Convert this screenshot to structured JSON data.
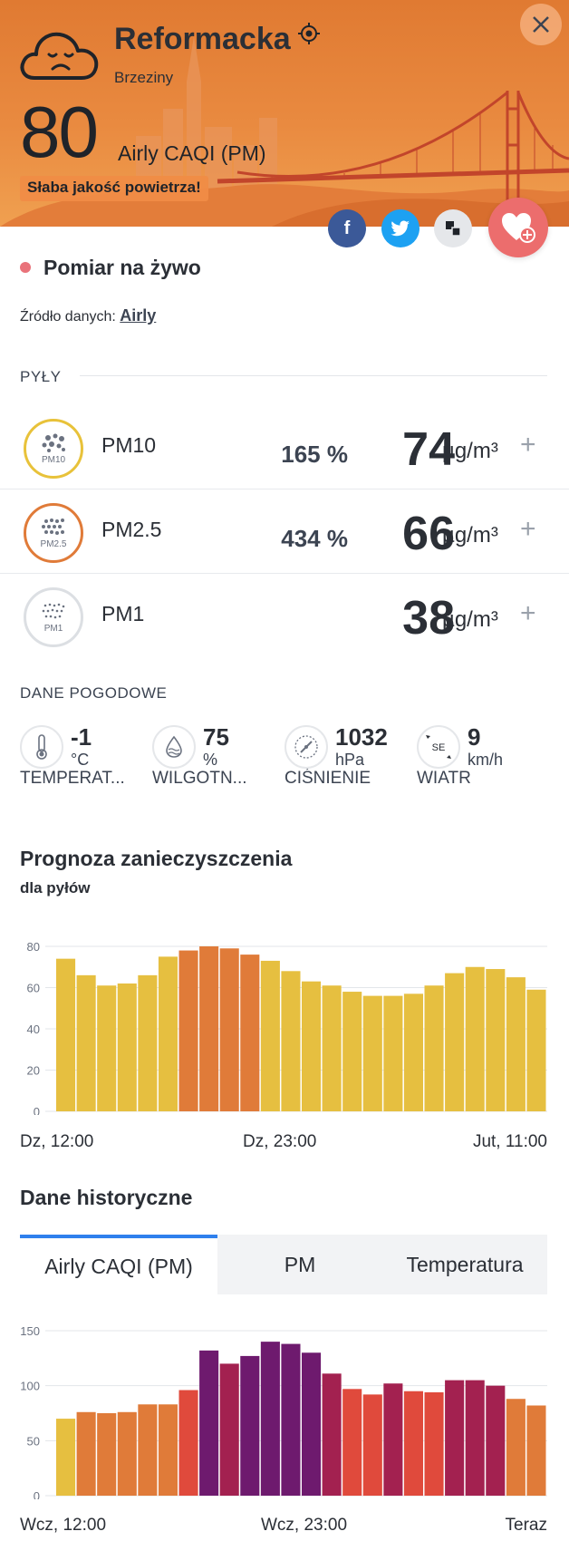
{
  "header": {
    "location_name": "Reformacka",
    "location_sub": "Brzeziny",
    "aqi_value": "80",
    "aqi_label": "Airly CAQI (PM)",
    "aqi_warning": "Słaba jakość powietrza!",
    "background_color": "#e98a40"
  },
  "share": {
    "facebook": "f"
  },
  "live": {
    "title": "Pomiar na żywo",
    "source_prefix": "Źródło danych:",
    "source_link": "Airly"
  },
  "pollutants": {
    "section_title": "PYŁY",
    "items": [
      {
        "name": "PM10",
        "badge": "PM10",
        "percent": "165 %",
        "value": "74",
        "unit": "µg/m³",
        "ring_color": "#e8c23a"
      },
      {
        "name": "PM2.5",
        "badge": "PM2.5",
        "percent": "434 %",
        "value": "66",
        "unit": "µg/m³",
        "ring_color": "#e07b39"
      },
      {
        "name": "PM1",
        "badge": "PM1",
        "percent": "",
        "value": "38",
        "unit": "µg/m³",
        "ring_color": "#dcdfe3"
      }
    ]
  },
  "weather": {
    "section_title": "DANE POGODOWE",
    "items": [
      {
        "value": "-1",
        "unit": "°C",
        "label": "TEMPERAT...",
        "icon": "thermometer-icon"
      },
      {
        "value": "75",
        "unit": "%",
        "label": "WILGOTN...",
        "icon": "humidity-icon"
      },
      {
        "value": "1032",
        "unit": "hPa",
        "label": "CIŚNIENIE",
        "icon": "pressure-gauge-icon"
      },
      {
        "value": "9",
        "unit": "km/h",
        "label": "WIATR",
        "icon": "wind-direction-icon",
        "direction": "SE"
      }
    ]
  },
  "forecast": {
    "title": "Prognoza zanieczyszczenia",
    "subtitle": "dla pyłów",
    "x_labels": [
      "Dz, 12:00",
      "Dz, 23:00",
      "Jut, 11:00"
    ]
  },
  "history": {
    "title": "Dane historyczne",
    "tabs": [
      "Airly CAQI (PM)",
      "PM",
      "Temperatura"
    ],
    "active_tab": 0,
    "x_labels": [
      "Wcz, 12:00",
      "Wcz, 23:00",
      "Teraz"
    ]
  },
  "chart_data": [
    {
      "type": "bar",
      "ylim": [
        0,
        80
      ],
      "yticks": [
        0,
        20,
        40,
        60,
        80
      ],
      "grid": true,
      "values": [
        74,
        66,
        61,
        62,
        66,
        75,
        78,
        80,
        79,
        76,
        73,
        68,
        63,
        61,
        58,
        56,
        56,
        57,
        61,
        67,
        70,
        69,
        65,
        59
      ],
      "colors": [
        "#e6bf40",
        "#e6bf40",
        "#e6bf40",
        "#e6bf40",
        "#e6bf40",
        "#e6bf40",
        "#e07b39",
        "#e07b39",
        "#e07b39",
        "#e07b39",
        "#e6bf40",
        "#e6bf40",
        "#e6bf40",
        "#e6bf40",
        "#e6bf40",
        "#e6bf40",
        "#e6bf40",
        "#e6bf40",
        "#e6bf40",
        "#e6bf40",
        "#e6bf40",
        "#e6bf40",
        "#e6bf40",
        "#e6bf40"
      ]
    },
    {
      "type": "bar",
      "ylim": [
        0,
        150
      ],
      "yticks": [
        0,
        50,
        100,
        150
      ],
      "grid": true,
      "values": [
        70,
        76,
        75,
        76,
        83,
        83,
        96,
        132,
        120,
        127,
        140,
        138,
        130,
        111,
        97,
        92,
        102,
        95,
        94,
        105,
        105,
        100,
        88,
        82
      ],
      "colors": [
        "#e6bf40",
        "#e07b39",
        "#e07b39",
        "#e07b39",
        "#e07b39",
        "#e07b39",
        "#e04a3c",
        "#6e1a6e",
        "#a32150",
        "#6e1a6e",
        "#6e1a6e",
        "#6e1a6e",
        "#6e1a6e",
        "#a32150",
        "#e04a3c",
        "#e04a3c",
        "#a32150",
        "#e04a3c",
        "#e04a3c",
        "#a32150",
        "#a32150",
        "#a32150",
        "#e07b39",
        "#e07b39"
      ]
    }
  ]
}
